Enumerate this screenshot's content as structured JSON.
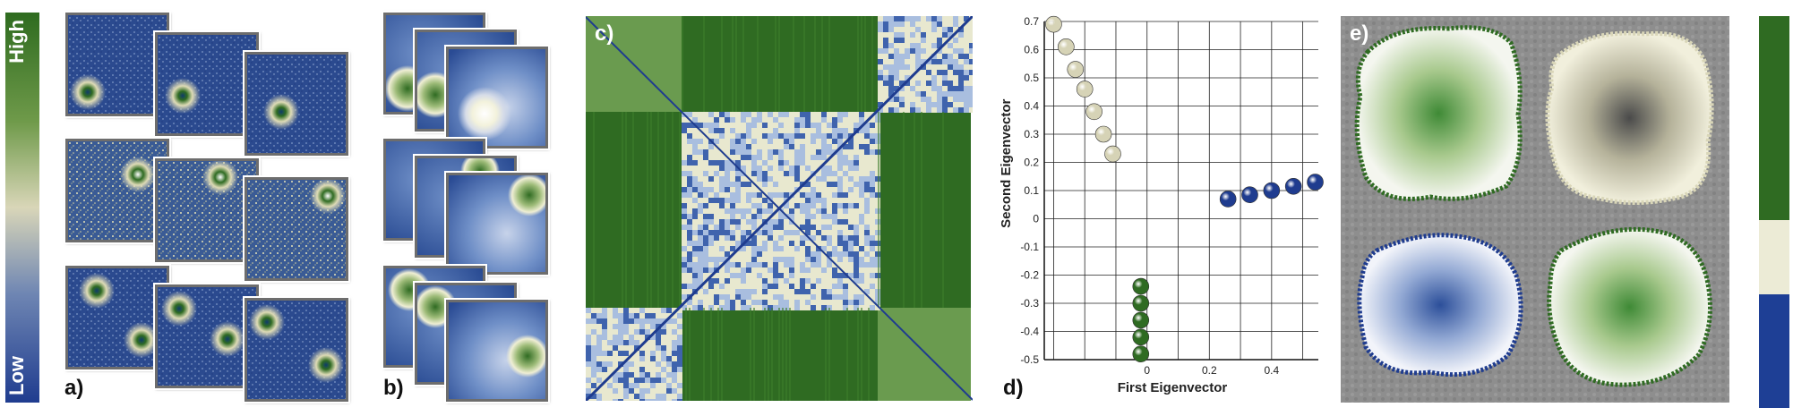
{
  "colorbar": {
    "high_label": "High",
    "low_label": "Low",
    "top_color": "#2e6b1f",
    "mid_color": "#dcd9bb",
    "bottom_color": "#1f3c8f"
  },
  "panels": {
    "a": {
      "label": "a)"
    },
    "b": {
      "label": "b)"
    },
    "c": {
      "label": "c)"
    },
    "d": {
      "label": "d)"
    },
    "e": {
      "label": "e)"
    }
  },
  "chart_data": {
    "type": "scatter",
    "xlabel": "First Eigenvector",
    "ylabel": "Second Eigenvector",
    "xlim": [
      -0.33,
      0.55
    ],
    "ylim": [
      -0.5,
      0.7
    ],
    "xticks": [
      0,
      0.2,
      0.4
    ],
    "xtick_labels": [
      "0",
      "0.2",
      "0.4"
    ],
    "yticks": [
      0.7,
      0.6,
      0.5,
      0.4,
      0.3,
      0.2,
      0.1,
      0,
      -0.1,
      -0.2,
      -0.3,
      -0.4,
      -0.5
    ],
    "ytick_labels": [
      "0.7",
      "0.6",
      "0.5",
      "0.4",
      "0.3",
      "0.2",
      "0.1",
      "0",
      "-0.1",
      "-0.2",
      "-0.3",
      "-0.4",
      "-0.5"
    ],
    "grid": true,
    "series": [
      {
        "color": "#d6d3b6",
        "x": [
          -0.3,
          -0.26,
          -0.23,
          -0.2,
          -0.17,
          -0.14,
          -0.11
        ],
        "y": [
          0.69,
          0.61,
          0.53,
          0.46,
          0.38,
          0.3,
          0.23
        ]
      },
      {
        "color": "#1f3c8f",
        "x": [
          0.26,
          0.33,
          0.4,
          0.47,
          0.54
        ],
        "y": [
          0.07,
          0.085,
          0.1,
          0.115,
          0.13
        ]
      },
      {
        "color": "#2f6b22",
        "x": [
          -0.02,
          -0.02,
          -0.02,
          -0.02,
          -0.02
        ],
        "y": [
          -0.24,
          -0.3,
          -0.36,
          -0.42,
          -0.48
        ]
      }
    ]
  },
  "legend_bar": {
    "segments": [
      {
        "color": "#2f6b22",
        "fraction": 0.52
      },
      {
        "color": "#ecebd6",
        "fraction": 0.19
      },
      {
        "color": "#1e3f95",
        "fraction": 0.29
      }
    ]
  }
}
